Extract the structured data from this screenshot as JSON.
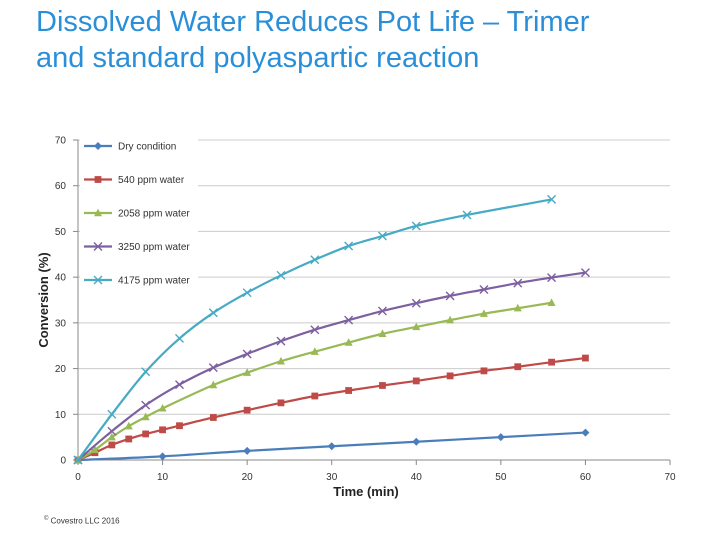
{
  "slide": {
    "title_line1": "Dissolved Water Reduces Pot Life – Trimer",
    "title_line2": "and standard polyaspartic reaction",
    "footer_mark": "©",
    "footer_text": "Covestro LLC 2016"
  },
  "chart_data": {
    "type": "line",
    "xlabel": "Time (min)",
    "ylabel": "Conversion (%)",
    "xlim": [
      0,
      70
    ],
    "ylim": [
      0,
      70
    ],
    "x_ticks": [
      0,
      10,
      20,
      30,
      40,
      50,
      60,
      70
    ],
    "y_ticks": [
      0,
      10,
      20,
      30,
      40,
      50,
      60,
      70
    ],
    "grid": "horizontal",
    "legend_position": "top-left",
    "series": [
      {
        "name": "Dry condition",
        "color": "#4a7ebb",
        "marker": "diamond",
        "x": [
          0,
          10,
          20,
          30,
          40,
          50,
          60
        ],
        "y": [
          0,
          0.8,
          2.0,
          3.0,
          4.0,
          5.0,
          6.0
        ]
      },
      {
        "name": "540 ppm water",
        "color": "#be4b48",
        "marker": "square",
        "x": [
          0,
          2,
          4,
          6,
          8,
          10,
          12,
          16,
          20,
          24,
          28,
          32,
          36,
          40,
          44,
          48,
          52,
          56,
          60
        ],
        "y": [
          0,
          1.6,
          3.3,
          4.6,
          5.7,
          6.6,
          7.5,
          9.3,
          10.9,
          12.5,
          14.0,
          15.2,
          16.3,
          17.3,
          18.4,
          19.5,
          20.4,
          21.4,
          22.3
        ]
      },
      {
        "name": "2058 ppm water",
        "color": "#98b954",
        "marker": "triangle",
        "x": [
          0,
          2,
          4,
          6,
          8,
          10,
          16,
          20,
          24,
          28,
          32,
          36,
          40,
          44,
          48,
          52,
          56
        ],
        "y": [
          0,
          2.2,
          5.0,
          7.4,
          9.4,
          11.3,
          16.4,
          19.1,
          21.6,
          23.7,
          25.7,
          27.6,
          29.1,
          30.6,
          32.0,
          33.2,
          34.4
        ]
      },
      {
        "name": "3250 ppm water",
        "color": "#7d60a0",
        "marker": "x",
        "x": [
          0,
          4,
          8,
          12,
          16,
          20,
          24,
          28,
          32,
          36,
          40,
          44,
          48,
          52,
          56,
          60
        ],
        "y": [
          0,
          6.3,
          12.0,
          16.5,
          20.2,
          23.2,
          26.0,
          28.5,
          30.6,
          32.6,
          34.3,
          35.9,
          37.3,
          38.7,
          39.9,
          41.0
        ]
      },
      {
        "name": "4175 ppm water",
        "color": "#46aac5",
        "marker": "x",
        "x": [
          0,
          4,
          8,
          12,
          16,
          20,
          24,
          28,
          32,
          36,
          40,
          46,
          56
        ],
        "y": [
          0,
          10.0,
          19.3,
          26.6,
          32.2,
          36.6,
          40.4,
          43.8,
          46.8,
          49.0,
          51.2,
          53.6,
          57.0
        ]
      }
    ]
  }
}
